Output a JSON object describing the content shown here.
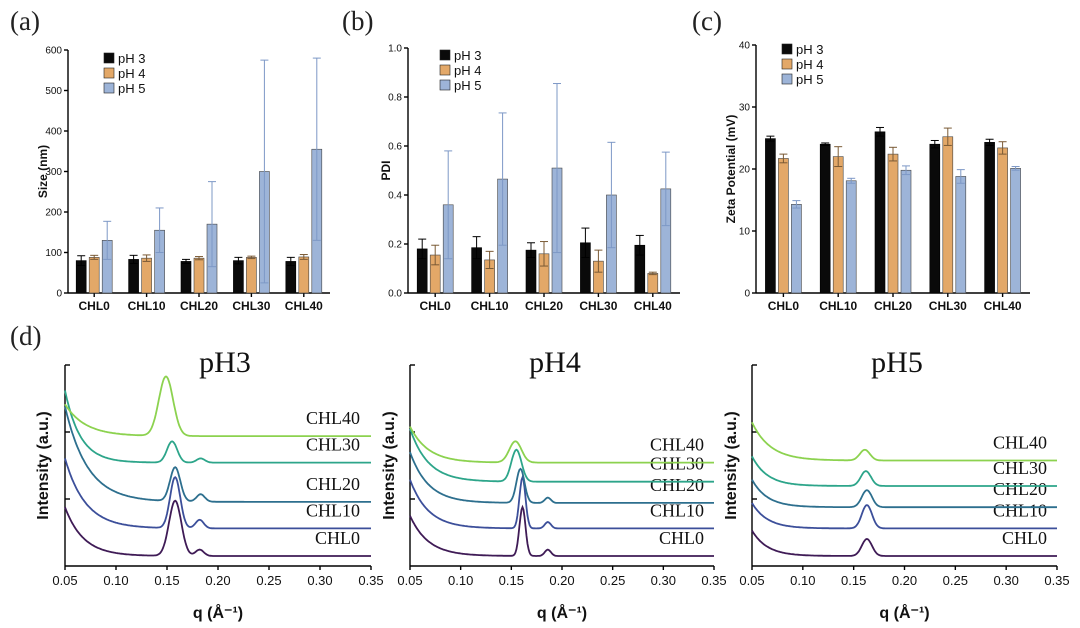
{
  "panel_labels": [
    "(a)",
    "(b)",
    "(c)",
    "(d)"
  ],
  "legend_entries": [
    "pH 3",
    "pH 4",
    "pH 5"
  ],
  "colors": {
    "ph3": "#0a0a0a",
    "ph4": "#e3a868",
    "ph5": "#9db4d8",
    "ph5_err": "#7d98c6"
  },
  "chart_data": [
    {
      "type": "bar",
      "title": "(a)",
      "ylabel": "Size (nm)",
      "ylim": [
        0,
        600
      ],
      "yticks": [
        0,
        100,
        200,
        300,
        400,
        500,
        600
      ],
      "categories": [
        "CHL0",
        "CHL10",
        "CHL20",
        "CHL30",
        "CHL40"
      ],
      "series": [
        {
          "name": "pH 3",
          "values": [
            80,
            83,
            78,
            80,
            78
          ],
          "errors": [
            12,
            10,
            5,
            8,
            10
          ]
        },
        {
          "name": "pH 4",
          "values": [
            88,
            86,
            86,
            88,
            89
          ],
          "errors": [
            5,
            8,
            4,
            3,
            6
          ]
        },
        {
          "name": "pH 5",
          "values": [
            130,
            155,
            170,
            300,
            355
          ],
          "errors": [
            47,
            55,
            105,
            275,
            225
          ]
        }
      ]
    },
    {
      "type": "bar",
      "title": "(b)",
      "ylabel": "PDI",
      "ylim": [
        0,
        1.0
      ],
      "yticks": [
        0.0,
        0.2,
        0.4,
        0.6,
        0.8,
        1.0
      ],
      "categories": [
        "CHL0",
        "CHL10",
        "CHL20",
        "CHL30",
        "CHL40"
      ],
      "series": [
        {
          "name": "pH 3",
          "values": [
            0.18,
            0.185,
            0.175,
            0.205,
            0.195
          ],
          "errors": [
            0.04,
            0.045,
            0.03,
            0.06,
            0.04
          ]
        },
        {
          "name": "pH 4",
          "values": [
            0.155,
            0.135,
            0.16,
            0.13,
            0.08
          ],
          "errors": [
            0.04,
            0.035,
            0.05,
            0.045,
            0.005
          ]
        },
        {
          "name": "pH 5",
          "values": [
            0.36,
            0.465,
            0.51,
            0.4,
            0.425
          ],
          "errors": [
            0.22,
            0.27,
            0.345,
            0.215,
            0.15
          ]
        }
      ]
    },
    {
      "type": "bar",
      "title": "(c)",
      "ylabel": "Zeta Potential (mV)",
      "ylim": [
        0,
        40
      ],
      "yticks": [
        0,
        10,
        20,
        30,
        40
      ],
      "categories": [
        "CHL0",
        "CHL10",
        "CHL20",
        "CHL30",
        "CHL40"
      ],
      "series": [
        {
          "name": "pH 3",
          "values": [
            24.9,
            24.0,
            26.0,
            24.0,
            24.3
          ],
          "errors": [
            0.4,
            0.2,
            0.7,
            0.6,
            0.5
          ]
        },
        {
          "name": "pH 4",
          "values": [
            21.7,
            22.0,
            22.4,
            25.2,
            23.4
          ],
          "errors": [
            0.7,
            1.6,
            1.1,
            1.4,
            1.0
          ]
        },
        {
          "name": "pH 5",
          "values": [
            14.3,
            18.1,
            19.8,
            18.8,
            20.1
          ],
          "errors": [
            0.6,
            0.4,
            0.7,
            1.1,
            0.3
          ]
        }
      ]
    },
    {
      "type": "line",
      "subtype": "saxs_profiles",
      "panel": "(d)",
      "xlabel": "q (Å⁻¹)",
      "ylabel": "Intensity (a.u.)",
      "xlim": [
        0.05,
        0.35
      ],
      "xticks": [
        0.05,
        0.1,
        0.15,
        0.2,
        0.25,
        0.3,
        0.35
      ],
      "yticks_arbitrary": 3,
      "note": "Curves are vertically offset; intensity in arbitrary units relative to each curve's baseline.",
      "subplots": [
        {
          "title": "pH3",
          "series": [
            {
              "name": "CHL0",
              "color": "#3f1b56",
              "baseline": 0.0,
              "peaks": [
                {
                  "q": 0.158,
                  "h": 0.26,
                  "w": 0.006
                },
                {
                  "q": 0.182,
                  "h": 0.03,
                  "w": 0.004
                }
              ],
              "low_q": 0.23,
              "low_decay": 0.018
            },
            {
              "name": "CHL10",
              "color": "#3c4f9a",
              "baseline": 0.13,
              "peaks": [
                {
                  "q": 0.158,
                  "h": 0.24,
                  "w": 0.005
                },
                {
                  "q": 0.182,
                  "h": 0.04,
                  "w": 0.004
                }
              ],
              "low_q": 0.33,
              "low_decay": 0.02
            },
            {
              "name": "CHL20",
              "color": "#2d6f8e",
              "baseline": 0.255,
              "peaks": [
                {
                  "q": 0.158,
                  "h": 0.16,
                  "w": 0.005
                },
                {
                  "q": 0.183,
                  "h": 0.035,
                  "w": 0.004
                }
              ],
              "low_q": 0.45,
              "low_decay": 0.022
            },
            {
              "name": "CHL30",
              "color": "#2da58a",
              "baseline": 0.44,
              "peaks": [
                {
                  "q": 0.155,
                  "h": 0.1,
                  "w": 0.005
                },
                {
                  "q": 0.183,
                  "h": 0.02,
                  "w": 0.004
                }
              ],
              "low_q": 0.34,
              "low_decay": 0.015
            },
            {
              "name": "CHL40",
              "color": "#8cd24f",
              "baseline": 0.565,
              "peaks": [
                {
                  "q": 0.149,
                  "h": 0.28,
                  "w": 0.007
                }
              ],
              "low_q": 0.15,
              "low_decay": 0.02
            }
          ]
        },
        {
          "title": "pH4",
          "series": [
            {
              "name": "CHL0",
              "color": "#3f1b56",
              "baseline": 0.0,
              "peaks": [
                {
                  "q": 0.161,
                  "h": 0.23,
                  "w": 0.003
                },
                {
                  "q": 0.186,
                  "h": 0.03,
                  "w": 0.003
                }
              ],
              "low_q": 0.19,
              "low_decay": 0.018
            },
            {
              "name": "CHL10",
              "color": "#3c4f9a",
              "baseline": 0.13,
              "peaks": [
                {
                  "q": 0.161,
                  "h": 0.24,
                  "w": 0.003
                },
                {
                  "q": 0.186,
                  "h": 0.03,
                  "w": 0.003
                }
              ],
              "low_q": 0.23,
              "low_decay": 0.018
            },
            {
              "name": "CHL20",
              "color": "#2d6f8e",
              "baseline": 0.25,
              "peaks": [
                {
                  "q": 0.159,
                  "h": 0.16,
                  "w": 0.004
                },
                {
                  "q": 0.186,
                  "h": 0.025,
                  "w": 0.003
                }
              ],
              "low_q": 0.24,
              "low_decay": 0.018
            },
            {
              "name": "CHL30",
              "color": "#2da58a",
              "baseline": 0.35,
              "peaks": [
                {
                  "q": 0.155,
                  "h": 0.15,
                  "w": 0.005
                }
              ],
              "low_q": 0.25,
              "low_decay": 0.018
            },
            {
              "name": "CHL40",
              "color": "#8cd24f",
              "baseline": 0.44,
              "peaks": [
                {
                  "q": 0.154,
                  "h": 0.1,
                  "w": 0.006
                }
              ],
              "low_q": 0.17,
              "low_decay": 0.018
            }
          ]
        },
        {
          "title": "pH5",
          "series": [
            {
              "name": "CHL0",
              "color": "#3f1b56",
              "baseline": 0.0,
              "peaks": [
                {
                  "q": 0.163,
                  "h": 0.08,
                  "w": 0.005
                }
              ],
              "low_q": 0.12,
              "low_decay": 0.015
            },
            {
              "name": "CHL10",
              "color": "#3c4f9a",
              "baseline": 0.13,
              "peaks": [
                {
                  "q": 0.163,
                  "h": 0.11,
                  "w": 0.005
                }
              ],
              "low_q": 0.12,
              "low_decay": 0.015
            },
            {
              "name": "CHL20",
              "color": "#2d6f8e",
              "baseline": 0.23,
              "peaks": [
                {
                  "q": 0.163,
                  "h": 0.08,
                  "w": 0.005
                }
              ],
              "low_q": 0.13,
              "low_decay": 0.015
            },
            {
              "name": "CHL30",
              "color": "#2da58a",
              "baseline": 0.33,
              "peaks": [
                {
                  "q": 0.162,
                  "h": 0.07,
                  "w": 0.005
                }
              ],
              "low_q": 0.14,
              "low_decay": 0.015
            },
            {
              "name": "CHL40",
              "color": "#8cd24f",
              "baseline": 0.45,
              "peaks": [
                {
                  "q": 0.161,
                  "h": 0.05,
                  "w": 0.005
                }
              ],
              "low_q": 0.18,
              "low_decay": 0.018
            }
          ]
        }
      ]
    }
  ]
}
